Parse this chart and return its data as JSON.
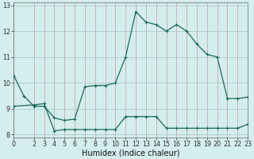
{
  "bg_color": "#d4eded",
  "grid_color_h": "#a8cccc",
  "grid_color_v": "#ccaaaa",
  "line_color": "#1a6b5a",
  "xlim": [
    0,
    23
  ],
  "ylim": [
    7.9,
    13.1
  ],
  "yticks": [
    8,
    9,
    10,
    11,
    12,
    13
  ],
  "xticks": [
    0,
    2,
    3,
    4,
    5,
    6,
    7,
    8,
    9,
    10,
    11,
    12,
    13,
    14,
    15,
    16,
    17,
    18,
    19,
    20,
    21,
    22,
    23
  ],
  "xlabel": "Humidex (Indice chaleur)",
  "curve1_x": [
    0,
    1,
    2,
    3,
    4,
    5,
    6,
    7,
    8,
    9,
    10,
    11,
    12,
    13,
    14,
    15,
    16,
    17,
    18,
    19,
    20,
    21,
    22,
    23
  ],
  "curve1_y": [
    10.3,
    9.5,
    9.1,
    9.1,
    8.65,
    8.55,
    8.6,
    9.85,
    9.9,
    9.9,
    10.0,
    11.0,
    12.75,
    12.35,
    12.25,
    12.0,
    12.25,
    12.0,
    11.5,
    11.1,
    11.0,
    9.4,
    9.4,
    9.45
  ],
  "curve2_x": [
    0,
    2,
    3,
    4,
    5,
    6,
    7,
    8,
    9,
    10,
    11,
    12,
    13,
    14,
    15,
    16,
    17,
    18,
    19,
    20,
    21,
    22,
    23
  ],
  "curve2_y": [
    9.1,
    9.15,
    9.2,
    8.15,
    8.2,
    8.2,
    8.2,
    8.2,
    8.2,
    8.2,
    8.7,
    8.7,
    8.7,
    8.7,
    8.25,
    8.25,
    8.25,
    8.25,
    8.25,
    8.25,
    8.25,
    8.25,
    8.4
  ],
  "linewidth": 0.9,
  "marker_size": 3.5,
  "tick_fontsize": 5.8,
  "xlabel_fontsize": 7.0
}
